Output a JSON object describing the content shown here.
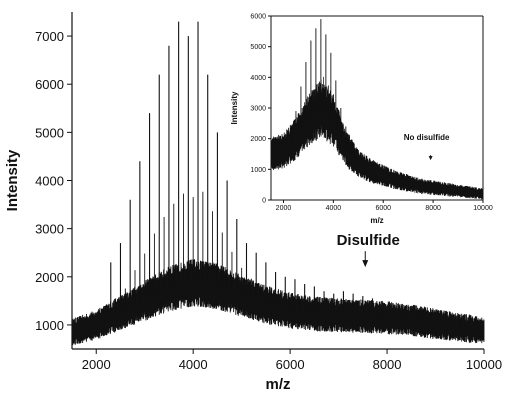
{
  "chart_data": [
    {
      "type": "line",
      "xlabel": "m/z",
      "ylabel": "Intensity",
      "xlim": [
        1500,
        10000
      ],
      "ylim": [
        500,
        7500
      ],
      "x_ticks": [
        2000,
        4000,
        6000,
        8000,
        10000
      ],
      "y_ticks": [
        1000,
        2000,
        3000,
        4000,
        5000,
        6000,
        7000
      ],
      "peak_spacing": 200,
      "baseline": [
        [
          1500,
          850
        ],
        [
          2000,
          1000
        ],
        [
          2500,
          1250
        ],
        [
          3000,
          1500
        ],
        [
          3500,
          1750
        ],
        [
          4000,
          1880
        ],
        [
          4500,
          1800
        ],
        [
          5000,
          1600
        ],
        [
          5500,
          1420
        ],
        [
          6000,
          1300
        ],
        [
          6500,
          1230
        ],
        [
          7000,
          1200
        ],
        [
          7500,
          1180
        ],
        [
          8000,
          1150
        ],
        [
          8500,
          1100
        ],
        [
          9000,
          1020
        ],
        [
          9500,
          950
        ],
        [
          10000,
          880
        ]
      ],
      "peaks": [
        [
          2300,
          2300
        ],
        [
          2500,
          2700
        ],
        [
          2700,
          3600
        ],
        [
          2900,
          4400
        ],
        [
          3100,
          5400
        ],
        [
          3300,
          6200
        ],
        [
          3500,
          6800
        ],
        [
          3700,
          7300
        ],
        [
          3900,
          7000
        ],
        [
          4100,
          7300
        ],
        [
          4300,
          6200
        ],
        [
          4500,
          5000
        ],
        [
          4700,
          4000
        ],
        [
          4900,
          3200
        ],
        [
          5100,
          2700
        ],
        [
          5300,
          2500
        ],
        [
          5500,
          2300
        ],
        [
          5700,
          2100
        ],
        [
          5900,
          2000
        ],
        [
          6100,
          1950
        ],
        [
          6300,
          1850
        ],
        [
          6500,
          1800
        ],
        [
          6700,
          1700
        ],
        [
          6900,
          1650
        ],
        [
          7100,
          1700
        ],
        [
          7300,
          1650
        ],
        [
          7500,
          1600
        ],
        [
          7700,
          1550
        ],
        [
          7900,
          1500
        ],
        [
          8100,
          1450
        ],
        [
          8300,
          1400
        ],
        [
          8500,
          1350
        ],
        [
          8700,
          1300
        ],
        [
          8900,
          1250
        ],
        [
          9100,
          1200
        ],
        [
          9300,
          1150
        ],
        [
          9500,
          1100
        ]
      ],
      "annotation": {
        "text": "Disulfide",
        "x": 7550,
        "y": 2200
      }
    },
    {
      "type": "line",
      "inset": true,
      "xlabel": "m/z",
      "ylabel": "Intensity",
      "xlim": [
        1500,
        10000
      ],
      "ylim": [
        0,
        6000
      ],
      "x_ticks": [
        2000,
        4000,
        6000,
        8000,
        10000
      ],
      "y_ticks": [
        0,
        1000,
        2000,
        3000,
        4000,
        5000,
        6000
      ],
      "peak_spacing": 200,
      "baseline": [
        [
          1500,
          1500
        ],
        [
          2000,
          1600
        ],
        [
          2500,
          2000
        ],
        [
          3000,
          2600
        ],
        [
          3500,
          3000
        ],
        [
          4000,
          2600
        ],
        [
          4500,
          1700
        ],
        [
          5000,
          1200
        ],
        [
          5500,
          950
        ],
        [
          6000,
          800
        ],
        [
          6500,
          650
        ],
        [
          7000,
          550
        ],
        [
          7500,
          450
        ],
        [
          8000,
          400
        ],
        [
          8500,
          350
        ],
        [
          9000,
          300
        ],
        [
          9500,
          250
        ],
        [
          10000,
          200
        ]
      ],
      "peaks": [
        [
          2300,
          2300
        ],
        [
          2500,
          2900
        ],
        [
          2700,
          3700
        ],
        [
          2900,
          4500
        ],
        [
          3100,
          5200
        ],
        [
          3300,
          5600
        ],
        [
          3500,
          5900
        ],
        [
          3700,
          5400
        ],
        [
          3900,
          4800
        ],
        [
          4100,
          3900
        ],
        [
          4300,
          3000
        ],
        [
          4500,
          2400
        ],
        [
          4700,
          1900
        ],
        [
          4900,
          1500
        ]
      ],
      "annotation": {
        "text": "No disulfide",
        "x": 7900,
        "y": 1300
      }
    }
  ]
}
